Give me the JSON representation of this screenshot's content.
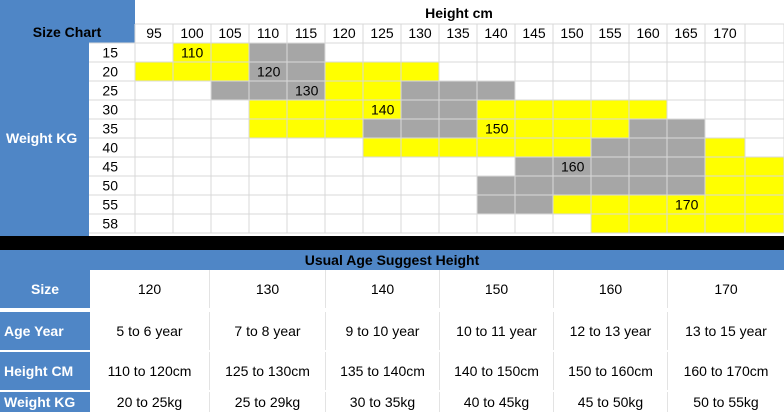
{
  "chart": {
    "corner_label": "Size Chart",
    "height_title": "Height cm",
    "weight_title": "Weight KG",
    "height_columns": [
      "95",
      "100",
      "105",
      "110",
      "115",
      "120",
      "125",
      "130",
      "135",
      "140",
      "145",
      "150",
      "155",
      "160",
      "165",
      "170"
    ],
    "weight_rows": [
      "15",
      "20",
      "25",
      "30",
      "35",
      "40",
      "45",
      "50",
      "55",
      "58"
    ],
    "bands": [
      {
        "size": "110",
        "color": "#ffff00",
        "label_cell": [
          1,
          0
        ],
        "cells": [
          [
            1,
            0
          ],
          [
            2,
            0
          ],
          [
            0,
            1
          ],
          [
            1,
            1
          ],
          [
            2,
            1
          ]
        ]
      },
      {
        "size": "120",
        "color": "#a6a6a6",
        "label_cell": [
          3,
          1
        ],
        "cells": [
          [
            3,
            0
          ],
          [
            4,
            0
          ],
          [
            3,
            1
          ],
          [
            4,
            1
          ],
          [
            2,
            2
          ],
          [
            3,
            2
          ],
          [
            4,
            2
          ]
        ]
      },
      {
        "size": "130",
        "color": "#ffff00",
        "label_cell": [
          4,
          2
        ],
        "cells": [
          [
            5,
            1
          ],
          [
            6,
            1
          ],
          [
            7,
            1
          ],
          [
            5,
            2
          ],
          [
            6,
            2
          ],
          [
            3,
            3
          ],
          [
            4,
            3
          ],
          [
            5,
            3
          ],
          [
            6,
            3
          ],
          [
            3,
            4
          ],
          [
            4,
            4
          ],
          [
            5,
            4
          ]
        ]
      },
      {
        "size": "140",
        "color": "#a6a6a6",
        "label_cell": [
          6,
          3
        ],
        "cells": [
          [
            7,
            2
          ],
          [
            8,
            2
          ],
          [
            9,
            2
          ],
          [
            7,
            3
          ],
          [
            8,
            3
          ],
          [
            6,
            4
          ],
          [
            7,
            4
          ],
          [
            8,
            4
          ]
        ]
      },
      {
        "size": "150",
        "color": "#ffff00",
        "label_cell": [
          9,
          4
        ],
        "cells": [
          [
            9,
            3
          ],
          [
            10,
            3
          ],
          [
            11,
            3
          ],
          [
            12,
            3
          ],
          [
            13,
            3
          ],
          [
            9,
            4
          ],
          [
            10,
            4
          ],
          [
            11,
            4
          ],
          [
            12,
            4
          ],
          [
            6,
            5
          ],
          [
            7,
            5
          ],
          [
            8,
            5
          ],
          [
            9,
            5
          ],
          [
            10,
            5
          ],
          [
            11,
            5
          ]
        ]
      },
      {
        "size": "160",
        "color": "#a6a6a6",
        "label_cell": [
          11,
          6
        ],
        "cells": [
          [
            13,
            4
          ],
          [
            14,
            4
          ],
          [
            12,
            5
          ],
          [
            13,
            5
          ],
          [
            14,
            5
          ],
          [
            10,
            6
          ],
          [
            11,
            6
          ],
          [
            12,
            6
          ],
          [
            13,
            6
          ],
          [
            14,
            6
          ],
          [
            9,
            7
          ],
          [
            10,
            7
          ],
          [
            11,
            7
          ],
          [
            12,
            7
          ],
          [
            13,
            7
          ],
          [
            14,
            7
          ],
          [
            9,
            8
          ],
          [
            10,
            8
          ]
        ]
      },
      {
        "size": "170",
        "color": "#ffff00",
        "label_cell": [
          14,
          8
        ],
        "cells": [
          [
            15,
            5
          ],
          [
            15,
            6
          ],
          [
            16,
            6
          ],
          [
            15,
            7
          ],
          [
            16,
            7
          ],
          [
            11,
            8
          ],
          [
            12,
            8
          ],
          [
            13,
            8
          ],
          [
            14,
            8
          ],
          [
            15,
            8
          ],
          [
            16,
            8
          ],
          [
            12,
            9
          ],
          [
            13,
            9
          ],
          [
            14,
            9
          ],
          [
            15,
            9
          ],
          [
            16,
            9
          ]
        ]
      }
    ]
  },
  "age_table": {
    "title": "Usual Age Suggest Height",
    "rows": [
      {
        "label": "Size",
        "values": [
          "120",
          "130",
          "140",
          "150",
          "160",
          "170"
        ]
      },
      {
        "label": "Age Year",
        "values": [
          "5 to 6 year",
          "7 to 8 year",
          "9 to 10 year",
          "10 to 11 year",
          "12 to 13 year",
          "13 to 15 year"
        ]
      },
      {
        "label": "Height CM",
        "values": [
          "110 to 120cm",
          "125 to 130cm",
          "135 to 140cm",
          "140 to 150cm",
          "150 to 160cm",
          "160 to 170cm"
        ]
      },
      {
        "label": "Weight KG",
        "values": [
          "20 to 25kg",
          "25 to 29kg",
          "30 to 35kg",
          "40 to 45kg",
          "45 to 50kg",
          "50 to 55kg"
        ]
      }
    ]
  },
  "colors": {
    "header_blue": "#4f86c6",
    "yellow": "#ffff00",
    "gray": "#a6a6a6",
    "grid": "#d9d9d9"
  }
}
